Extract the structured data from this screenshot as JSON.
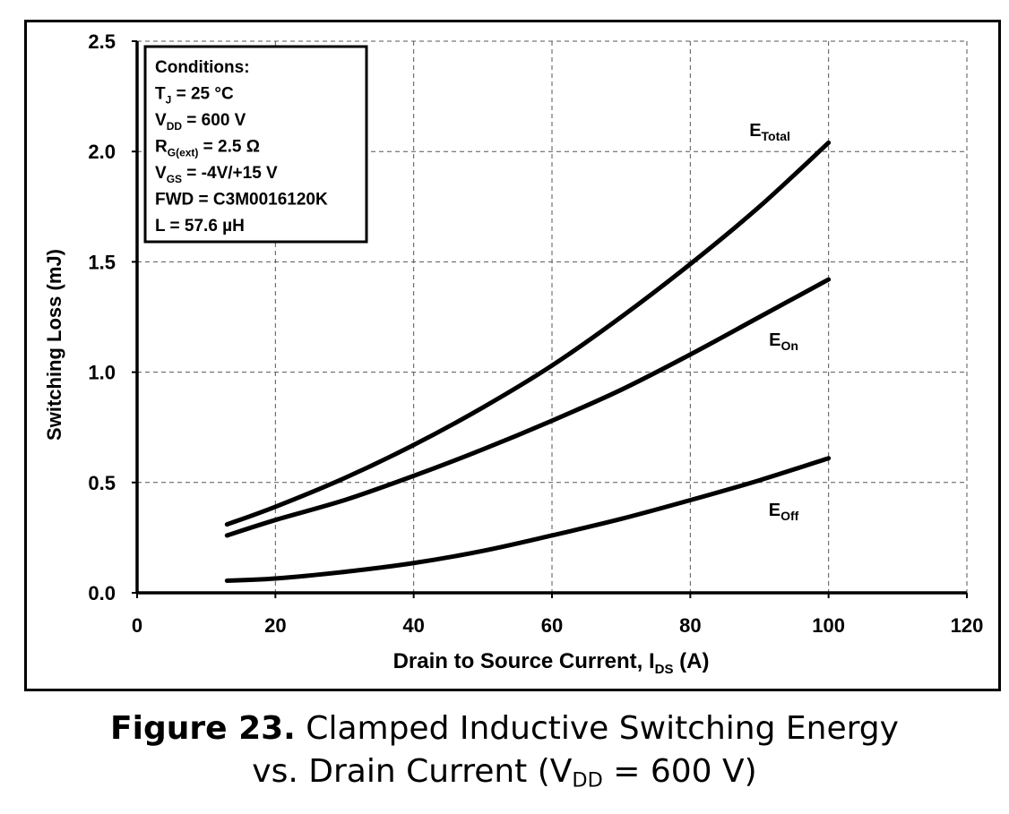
{
  "chart_data": {
    "type": "line",
    "xlabel": {
      "main": "Drain to Source Current, I",
      "sub": "DS",
      "suffix": " (A)"
    },
    "ylabel": "Switching Loss (mJ)",
    "xlim": [
      0,
      120
    ],
    "ylim": [
      0,
      2.5
    ],
    "xticks": [
      0,
      20,
      40,
      60,
      80,
      100,
      120
    ],
    "xtick_labels": [
      "0",
      "20",
      "40",
      "60",
      "80",
      "100",
      "120"
    ],
    "yticks": [
      0,
      0.5,
      1.0,
      1.5,
      2.0,
      2.5
    ],
    "ytick_labels": [
      "0.0",
      "0.5",
      "1.0",
      "1.5",
      "2.0",
      "2.5"
    ],
    "grid": true,
    "series": [
      {
        "name": "E_Total",
        "label_main": "E",
        "label_sub": "Total",
        "x": [
          13,
          20,
          30,
          40,
          50,
          60,
          70,
          80,
          90,
          100
        ],
        "y": [
          0.31,
          0.39,
          0.52,
          0.67,
          0.84,
          1.03,
          1.25,
          1.49,
          1.75,
          2.04
        ]
      },
      {
        "name": "E_On",
        "label_main": "E",
        "label_sub": "On",
        "x": [
          13,
          20,
          30,
          40,
          50,
          60,
          70,
          80,
          90,
          100
        ],
        "y": [
          0.26,
          0.33,
          0.42,
          0.53,
          0.65,
          0.78,
          0.92,
          1.08,
          1.25,
          1.42
        ]
      },
      {
        "name": "E_Off",
        "label_main": "E",
        "label_sub": "Off",
        "x": [
          13,
          20,
          30,
          40,
          50,
          60,
          70,
          80,
          90,
          100
        ],
        "y": [
          0.055,
          0.065,
          0.095,
          0.135,
          0.19,
          0.26,
          0.335,
          0.42,
          0.51,
          0.61
        ]
      }
    ],
    "annotation_box": {
      "lines": [
        {
          "main": "Conditions:",
          "sub": "",
          "rest": ""
        },
        {
          "main": "T",
          "sub": "J",
          "rest": " = 25 °C"
        },
        {
          "main": "V",
          "sub": "DD",
          "rest": " = 600 V"
        },
        {
          "main": "R",
          "sub": "G(ext)",
          "rest": " = 2.5 Ω"
        },
        {
          "main": "V",
          "sub": "GS",
          "rest": " = -4V/+15 V"
        },
        {
          "main": "FWD = C3M0016120K",
          "sub": "",
          "rest": ""
        },
        {
          "main": "L = 57.6 µH",
          "sub": "",
          "rest": ""
        }
      ]
    }
  },
  "caption": {
    "figure_number": "Figure 23.",
    "line1": " Clamped Inductive Switching Energy",
    "line2_prefix": "vs. Drain Current (V",
    "line2_sub": "DD",
    "line2_suffix": " = 600 V)"
  }
}
